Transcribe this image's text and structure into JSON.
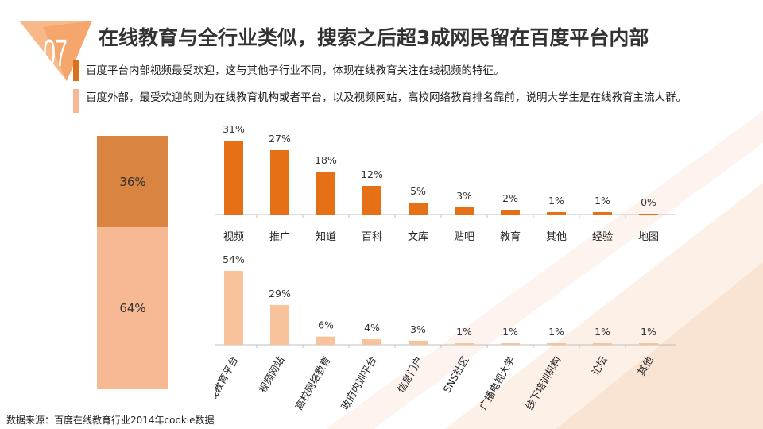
{
  "header": {
    "badge_number": "07",
    "title": "在线教育与全行业类似，搜索之后超3成网民留在百度平台内部"
  },
  "bullets": [
    {
      "text": "百度平台内部视频最受欢迎，这与其他子行业不同，体现在线教育关注在线视频的特征。",
      "color": "#d9711f"
    },
    {
      "text": "百度外部，最受欢迎的则为在线教育机构或者平台，以及视频网站，高校网络教育排名靠前，说明大学生是在线教育主流人群。",
      "color": "#f6b993"
    }
  ],
  "source": "数据来源：百度在线教育行业2014年cookie数据",
  "chart_data": [
    {
      "type": "bar",
      "stacked": true,
      "categories": [
        ""
      ],
      "series": [
        {
          "values": [
            36
          ],
          "color": "#d98440"
        },
        {
          "values": [
            64
          ],
          "color": "#f6b993"
        }
      ],
      "data_labels": [
        "36%",
        "64%"
      ],
      "ylim": [
        0,
        100
      ]
    },
    {
      "type": "bar",
      "categories": [
        "视频",
        "推广",
        "知道",
        "百科",
        "文库",
        "贴吧",
        "教育",
        "其他",
        "经验",
        "地图"
      ],
      "values": [
        31,
        27,
        18,
        12,
        5,
        3,
        2,
        1,
        1,
        0
      ],
      "data_labels": [
        "31%",
        "27%",
        "18%",
        "12%",
        "5%",
        "3%",
        "2%",
        "1%",
        "1%",
        "0%"
      ],
      "color": "#e57015",
      "ylim": [
        0,
        31
      ]
    },
    {
      "type": "bar",
      "categories": [
        "在线教育平台",
        "视频网站",
        "高校网络教育",
        "政府内训平台",
        "信息门户",
        "SNS社区",
        "广播电视大学",
        "线下培训机构",
        "论坛",
        "其他"
      ],
      "values": [
        54,
        29,
        6,
        4,
        3,
        1,
        1,
        1,
        1,
        1
      ],
      "data_labels": [
        "54%",
        "29%",
        "6%",
        "4%",
        "3%",
        "1%",
        "1%",
        "1%",
        "1%",
        "1%"
      ],
      "color": "#f8c29a",
      "ylim": [
        0,
        54
      ]
    }
  ]
}
